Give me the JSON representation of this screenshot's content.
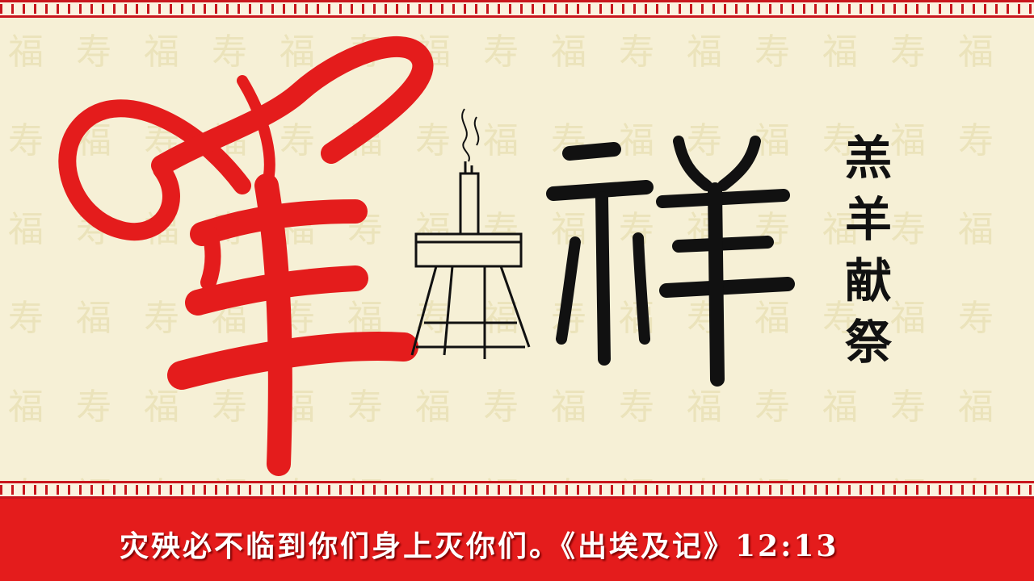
{
  "vertical_text": [
    "羔",
    "羊",
    "献",
    "祭"
  ],
  "caption": "灾殃必不临到你们身上灭你们。《出埃及记》12:13",
  "colors": {
    "red": "#e41c1c",
    "ink": "#111111",
    "paper": "#f6f0d6",
    "pattern": "#e8dfb2"
  },
  "background_pattern": "福寿福寿福寿福寿福寿福寿福寿福寿福寿福寿福寿福寿福寿福寿福寿福寿福寿福寿福寿福寿福寿福寿福寿福寿福寿福寿福寿福寿福寿福寿福寿福寿福寿福寿福寿福寿福寿福寿福寿福寿福寿福寿福寿福寿福寿福寿福寿福寿"
}
